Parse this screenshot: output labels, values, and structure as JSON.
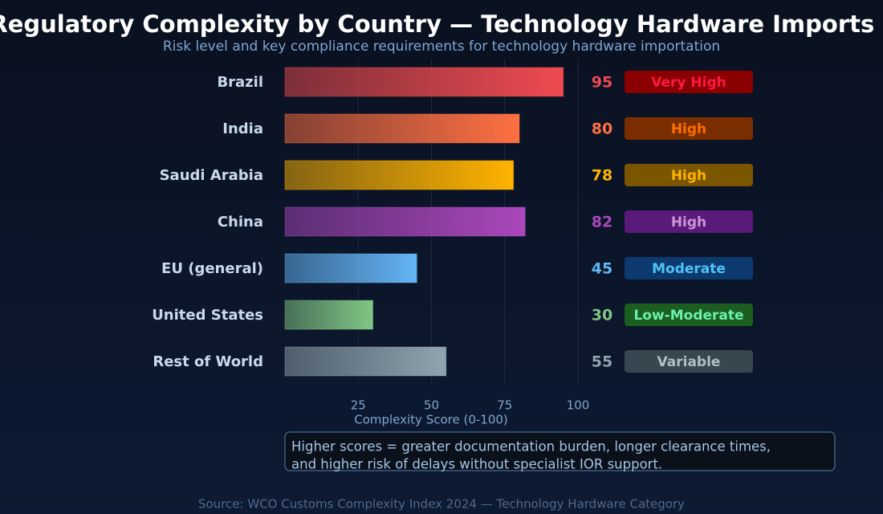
{
  "chart_data": {
    "type": "bar",
    "orientation": "horizontal",
    "title": "Regulatory Complexity by Country — Technology Hardware Imports (",
    "subtitle": "Risk level and key compliance requirements for technology hardware importation",
    "categories": [
      "Brazil",
      "India",
      "Saudi Arabia",
      "China",
      "EU (general)",
      "United States",
      "Rest of World"
    ],
    "values": [
      95,
      80,
      78,
      82,
      45,
      30,
      55
    ],
    "colors": [
      "#ef4b50",
      "#ff7043",
      "#ffb300",
      "#ab47bc",
      "#64b5f6",
      "#81c784",
      "#90a4ae"
    ],
    "risk_levels": [
      "Very High",
      "High",
      "High",
      "High",
      "Moderate",
      "Low-Moderate",
      "Variable"
    ],
    "badge_colors": [
      "#8b0000",
      "#7a2e00",
      "#7a5600",
      "#5a1a7a",
      "#0d3a6e",
      "#1b5e20",
      "#37474f"
    ],
    "badge_text_colors": [
      "#ff1744",
      "#ff6d00",
      "#ffb300",
      "#ce93d8",
      "#4fc3f7",
      "#69f0ae",
      "#b0bec5"
    ],
    "xlabel": "Complexity Score (0-100)",
    "xlim": [
      0,
      100
    ],
    "xticks": [
      25,
      50,
      75,
      100
    ],
    "grid": true,
    "annotation": [
      "Higher scores = greater documentation burden, longer clearance times,",
      "and higher risk of delays without specialist IOR support."
    ],
    "source": "Source: WCO Customs Complexity Index 2024 — Technology Hardware Category"
  }
}
